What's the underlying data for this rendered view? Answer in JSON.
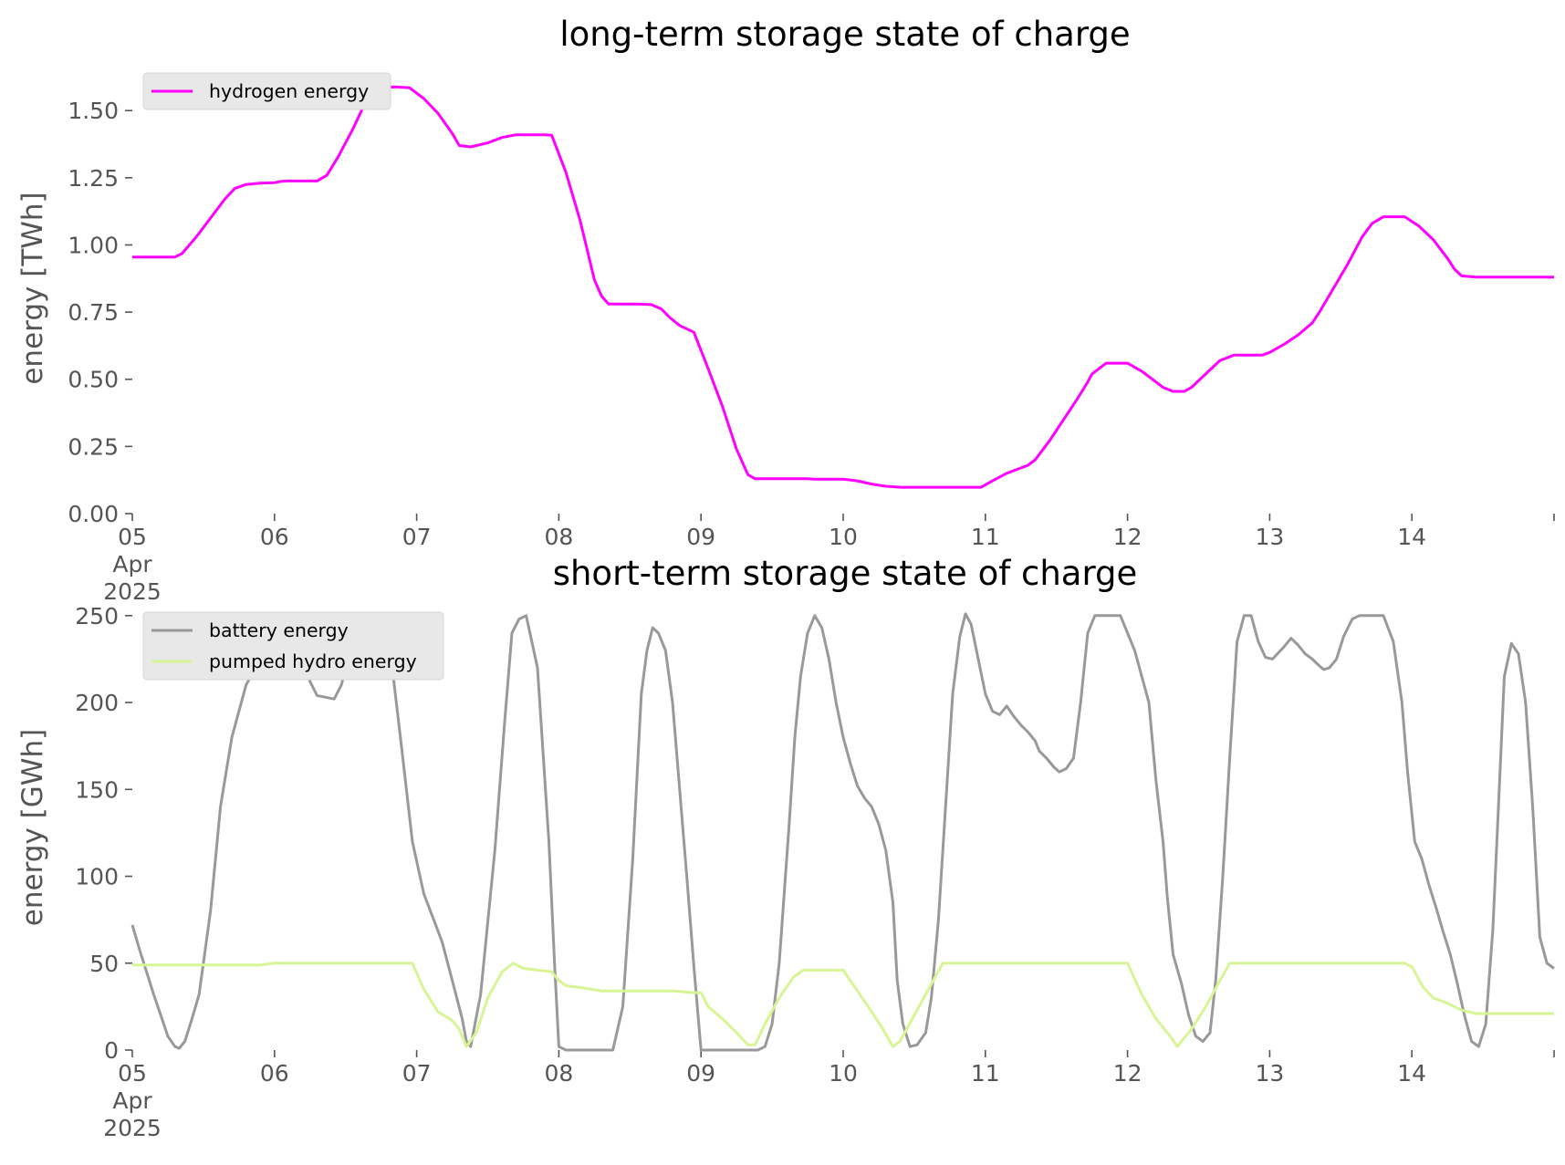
{
  "chart_data": [
    {
      "type": "line",
      "title": "long-term storage state of charge",
      "ylabel": "energy [TWh]",
      "xlabel": "",
      "x_unit": "day of April 2025",
      "xlim": [
        5,
        15
      ],
      "ylim": [
        0,
        1.64
      ],
      "yticks": [
        0.0,
        0.25,
        0.5,
        0.75,
        1.0,
        1.25,
        1.5
      ],
      "ytick_labels": [
        "0.00",
        "0.25",
        "0.50",
        "0.75",
        "1.00",
        "1.25",
        "1.50"
      ],
      "xticks": [
        5,
        6,
        7,
        8,
        9,
        10,
        11,
        12,
        13,
        14,
        15
      ],
      "xtick_labels": [
        "05",
        "06",
        "07",
        "08",
        "09",
        "10",
        "11",
        "12",
        "13",
        "14",
        ""
      ],
      "xtick_sublabels": [
        "Apr",
        "2025"
      ],
      "grid": false,
      "legend_position": "top-left",
      "series": [
        {
          "name": "hydrogen energy",
          "color": "#ff00ff",
          "x": [
            5.0,
            5.3,
            5.35,
            5.45,
            5.55,
            5.65,
            5.72,
            5.8,
            5.9,
            6.0,
            6.05,
            6.1,
            6.3,
            6.37,
            6.45,
            6.55,
            6.63,
            6.73,
            6.85,
            6.95,
            7.05,
            7.15,
            7.25,
            7.3,
            7.38,
            7.5,
            7.6,
            7.7,
            7.8,
            7.9,
            7.95,
            8.05,
            8.15,
            8.25,
            8.3,
            8.35,
            8.45,
            8.55,
            8.65,
            8.72,
            8.78,
            8.85,
            8.95,
            9.05,
            9.15,
            9.25,
            9.33,
            9.38,
            9.45,
            9.6,
            9.7,
            9.75,
            9.8,
            9.9,
            10.0,
            10.1,
            10.2,
            10.3,
            10.35,
            10.4,
            10.5,
            10.6,
            10.7,
            10.8,
            10.97,
            11.05,
            11.15,
            11.25,
            11.3,
            11.35,
            11.45,
            11.55,
            11.65,
            11.72,
            11.75,
            11.85,
            11.95,
            12.0,
            12.1,
            12.2,
            12.25,
            12.32,
            12.4,
            12.45,
            12.55,
            12.65,
            12.75,
            12.85,
            12.95,
            13.0,
            13.1,
            13.2,
            13.3,
            13.35,
            13.45,
            13.55,
            13.65,
            13.72,
            13.8,
            13.9,
            13.95,
            14.05,
            14.15,
            14.25,
            14.3,
            14.35,
            14.45,
            15.0
          ],
          "values": [
            0.955,
            0.955,
            0.968,
            1.03,
            1.1,
            1.17,
            1.21,
            1.225,
            1.23,
            1.232,
            1.237,
            1.238,
            1.238,
            1.26,
            1.33,
            1.43,
            1.52,
            1.585,
            1.588,
            1.585,
            1.545,
            1.49,
            1.415,
            1.37,
            1.365,
            1.38,
            1.4,
            1.41,
            1.41,
            1.41,
            1.408,
            1.27,
            1.09,
            0.87,
            0.81,
            0.78,
            0.78,
            0.78,
            0.778,
            0.762,
            0.73,
            0.7,
            0.675,
            0.54,
            0.4,
            0.24,
            0.145,
            0.13,
            0.13,
            0.13,
            0.13,
            0.13,
            0.128,
            0.128,
            0.128,
            0.122,
            0.11,
            0.102,
            0.1,
            0.098,
            0.098,
            0.098,
            0.098,
            0.098,
            0.098,
            0.122,
            0.15,
            0.17,
            0.18,
            0.2,
            0.27,
            0.35,
            0.43,
            0.49,
            0.52,
            0.56,
            0.56,
            0.56,
            0.53,
            0.49,
            0.47,
            0.455,
            0.455,
            0.47,
            0.52,
            0.57,
            0.59,
            0.59,
            0.59,
            0.6,
            0.63,
            0.665,
            0.71,
            0.75,
            0.84,
            0.93,
            1.03,
            1.08,
            1.105,
            1.105,
            1.105,
            1.07,
            1.02,
            0.95,
            0.91,
            0.885,
            0.88,
            0.88
          ]
        }
      ]
    },
    {
      "type": "line",
      "title": "short-term storage state of charge",
      "ylabel": "energy [GWh]",
      "xlabel": "",
      "x_unit": "day of April 2025",
      "xlim": [
        5,
        15
      ],
      "ylim": [
        0,
        252
      ],
      "yticks": [
        0,
        50,
        100,
        150,
        200,
        250
      ],
      "ytick_labels": [
        "0",
        "50",
        "100",
        "150",
        "200",
        "250"
      ],
      "xticks": [
        5,
        6,
        7,
        8,
        9,
        10,
        11,
        12,
        13,
        14,
        15
      ],
      "xtick_labels": [
        "05",
        "06",
        "07",
        "08",
        "09",
        "10",
        "11",
        "12",
        "13",
        "14",
        ""
      ],
      "xtick_sublabels": [
        "Apr",
        "2025"
      ],
      "grid": false,
      "legend_position": "top-left",
      "series": [
        {
          "name": "battery energy",
          "color": "#999999",
          "x": [
            5.0,
            5.05,
            5.1,
            5.15,
            5.2,
            5.25,
            5.3,
            5.33,
            5.37,
            5.42,
            5.47,
            5.55,
            5.62,
            5.7,
            5.8,
            5.9,
            6.0,
            6.05,
            6.1,
            6.15,
            6.2,
            6.25,
            6.3,
            6.42,
            6.47,
            6.52,
            6.58,
            6.63,
            6.7,
            6.75,
            6.8,
            6.9,
            6.97,
            7.05,
            7.12,
            7.18,
            7.25,
            7.32,
            7.35,
            7.38,
            7.45,
            7.55,
            7.62,
            7.67,
            7.72,
            7.77,
            7.85,
            7.93,
            7.97,
            8.0,
            8.05,
            8.1,
            8.2,
            8.3,
            8.38,
            8.45,
            8.52,
            8.58,
            8.62,
            8.66,
            8.7,
            8.75,
            8.8,
            8.85,
            8.9,
            8.95,
            9.0,
            9.1,
            9.2,
            9.35,
            9.4,
            9.45,
            9.5,
            9.55,
            9.62,
            9.66,
            9.7,
            9.75,
            9.8,
            9.85,
            9.9,
            9.95,
            10.0,
            10.05,
            10.1,
            10.15,
            10.2,
            10.25,
            10.3,
            10.35,
            10.38,
            10.42,
            10.47,
            10.52,
            10.58,
            10.62,
            10.67,
            10.72,
            10.77,
            10.82,
            10.86,
            10.9,
            10.95,
            11.0,
            11.05,
            11.1,
            11.15,
            11.2,
            11.25,
            11.3,
            11.35,
            11.38,
            11.43,
            11.48,
            11.52,
            11.57,
            11.62,
            11.67,
            11.72,
            11.77,
            11.83,
            11.88,
            11.95,
            12.05,
            12.15,
            12.2,
            12.25,
            12.28,
            12.32,
            12.38,
            12.43,
            12.48,
            12.53,
            12.58,
            12.62,
            12.67,
            12.72,
            12.77,
            12.82,
            12.87,
            12.92,
            12.97,
            13.02,
            13.1,
            13.15,
            13.2,
            13.25,
            13.3,
            13.35,
            13.38,
            13.42,
            13.47,
            13.52,
            13.58,
            13.63,
            13.68,
            13.75,
            13.8,
            13.87,
            13.93,
            13.97,
            14.02,
            14.07,
            14.12,
            14.17,
            14.22,
            14.27,
            14.32,
            14.37,
            14.42,
            14.47,
            14.52,
            14.57,
            14.62,
            14.65,
            14.7,
            14.75,
            14.8,
            14.85,
            14.9,
            14.95,
            15.0
          ],
          "values": [
            72,
            58,
            45,
            32,
            20,
            8,
            2,
            1,
            5,
            18,
            32,
            80,
            140,
            180,
            210,
            225,
            242,
            245,
            244,
            238,
            225,
            212,
            204,
            202,
            210,
            225,
            242,
            250,
            251,
            248,
            240,
            170,
            120,
            90,
            75,
            62,
            40,
            18,
            5,
            2,
            32,
            115,
            190,
            240,
            248,
            250,
            220,
            120,
            50,
            2,
            0,
            0,
            0,
            0,
            0,
            25,
            110,
            205,
            230,
            243,
            240,
            230,
            200,
            150,
            100,
            48,
            0,
            0,
            0,
            0,
            0,
            2,
            15,
            50,
            130,
            180,
            215,
            240,
            250,
            243,
            225,
            200,
            180,
            165,
            152,
            145,
            140,
            130,
            115,
            85,
            40,
            15,
            2,
            3,
            10,
            30,
            75,
            140,
            205,
            238,
            251,
            245,
            225,
            205,
            195,
            193,
            198,
            192,
            187,
            183,
            178,
            172,
            168,
            163,
            160,
            162,
            168,
            200,
            240,
            250,
            250,
            250,
            250,
            230,
            200,
            155,
            120,
            88,
            55,
            38,
            20,
            8,
            5,
            10,
            40,
            100,
            170,
            235,
            250,
            250,
            235,
            226,
            225,
            232,
            237,
            233,
            228,
            225,
            221,
            219,
            220,
            225,
            238,
            248,
            250,
            250,
            250,
            250,
            235,
            200,
            160,
            120,
            110,
            95,
            82,
            68,
            55,
            38,
            20,
            5,
            2,
            15,
            70,
            160,
            215,
            234,
            228,
            200,
            140,
            65,
            50,
            47
          ]
        },
        {
          "name": "pumped hydro energy",
          "color": "#d8f595",
          "x": [
            5.0,
            5.1,
            5.3,
            5.5,
            5.7,
            5.9,
            6.0,
            6.5,
            6.97,
            7.05,
            7.15,
            7.25,
            7.3,
            7.35,
            7.42,
            7.5,
            7.6,
            7.68,
            7.75,
            7.85,
            7.95,
            8.0,
            8.05,
            8.15,
            8.3,
            8.5,
            8.8,
            8.95,
            9.0,
            9.05,
            9.15,
            9.25,
            9.33,
            9.38,
            9.45,
            9.55,
            9.65,
            9.72,
            9.8,
            9.95,
            10.0,
            10.1,
            10.2,
            10.28,
            10.35,
            10.4,
            10.5,
            10.6,
            10.7,
            10.95,
            11.0,
            11.5,
            11.95,
            12.0,
            12.1,
            12.2,
            12.3,
            12.35,
            12.45,
            12.55,
            12.65,
            12.72,
            12.8,
            13.0,
            13.5,
            13.95,
            14.0,
            14.08,
            14.15,
            14.25,
            14.35,
            14.45,
            14.6,
            14.8,
            15.0
          ],
          "values": [
            49,
            49,
            49,
            49,
            49,
            49,
            50,
            50,
            50,
            35,
            22,
            17,
            12,
            2,
            10,
            30,
            45,
            50,
            47,
            46,
            45,
            40,
            37,
            36,
            34,
            34,
            34,
            33,
            33,
            25,
            18,
            10,
            3,
            3,
            15,
            30,
            42,
            46,
            46,
            46,
            46,
            34,
            22,
            12,
            2,
            5,
            20,
            35,
            50,
            50,
            50,
            50,
            50,
            50,
            32,
            18,
            8,
            2,
            12,
            25,
            40,
            50,
            50,
            50,
            50,
            50,
            48,
            36,
            30,
            27,
            23,
            21,
            21,
            21,
            21
          ]
        }
      ]
    }
  ]
}
